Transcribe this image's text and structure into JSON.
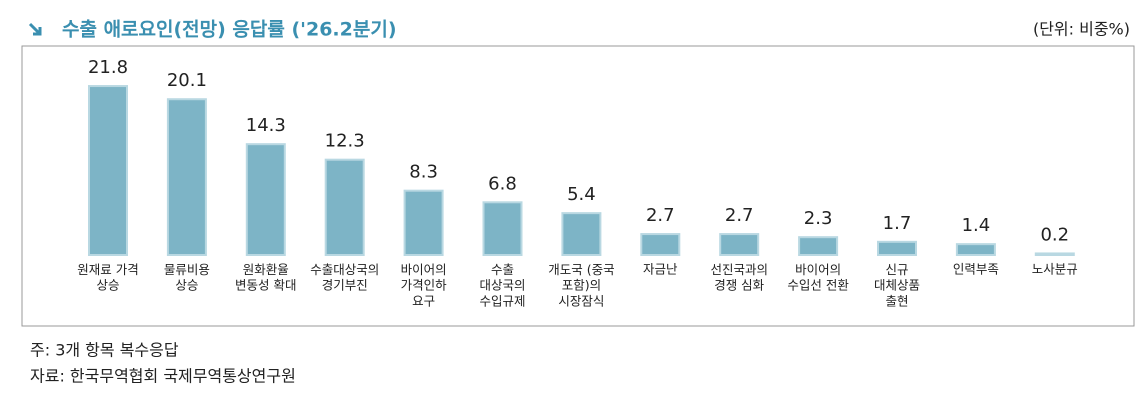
{
  "chart_data": {
    "type": "bar",
    "title": "수출 애로요인(전망) 응답률 ('26.2분기)",
    "unit": "(단위: 비중%)",
    "categories": [
      "원재료 가격\n상승",
      "물류비용\n상승",
      "원화환율\n변동성 확대",
      "수출대상국의\n경기부진",
      "바이어의\n가격인하\n요구",
      "수출\n대상국의\n수입규제",
      "개도국 (중국\n포함)의\n시장잠식",
      "자금난",
      "선진국과의\n경쟁 심화",
      "바이어의\n수입선 전환",
      "신규\n대체상품\n출현",
      "인력부족",
      "노사분규"
    ],
    "values": [
      21.8,
      20.1,
      14.3,
      12.3,
      8.3,
      6.8,
      5.4,
      2.7,
      2.7,
      2.3,
      1.7,
      1.4,
      0.2
    ],
    "color": "#7db4c6",
    "notes": [
      "주: 3개 항목 복수응답",
      "자료: 한국무역협회 국제무역통상연구원"
    ]
  }
}
